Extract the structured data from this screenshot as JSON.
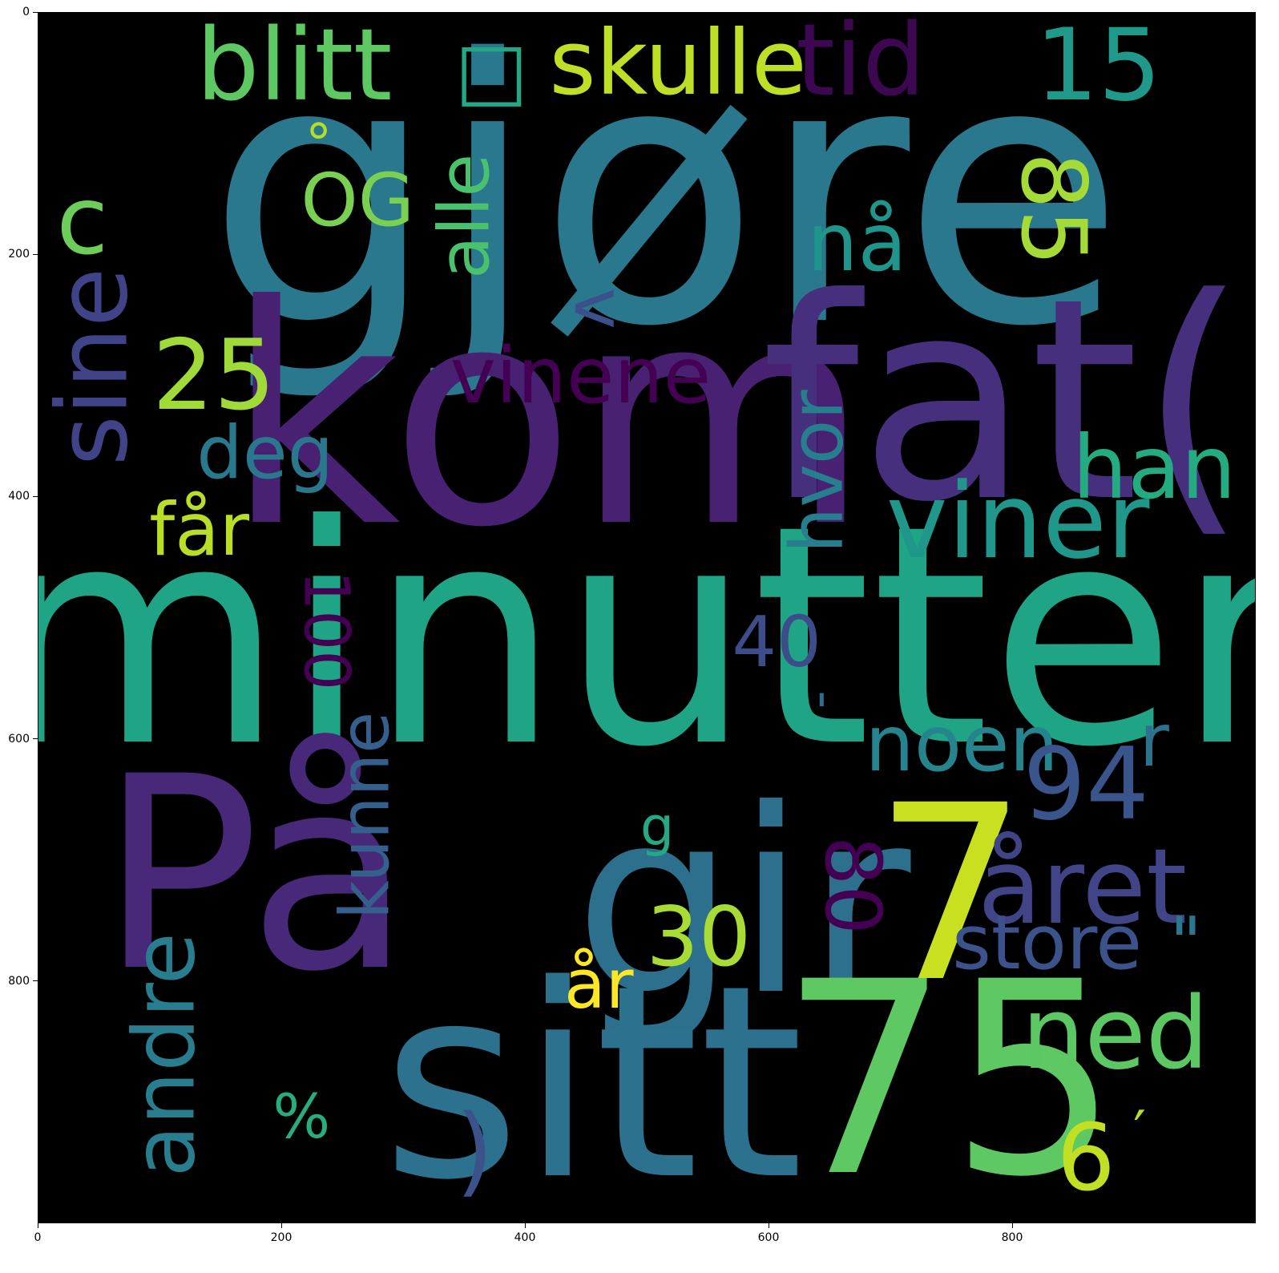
{
  "chart_data": {
    "type": "wordcloud",
    "background": "#000000",
    "xlim": [
      0,
      1000
    ],
    "ylim": [
      1000,
      0
    ],
    "x_ticks": [
      0,
      200,
      400,
      600,
      800
    ],
    "y_ticks": [
      0,
      200,
      400,
      600,
      800
    ],
    "words": [
      {
        "text": "gjøre",
        "x": 515,
        "y": 150,
        "size": 300,
        "rotate": 0,
        "color": "#2a788e"
      },
      {
        "text": "minutter",
        "x": 498,
        "y": 516,
        "size": 250,
        "rotate": 0,
        "color": "#20a486"
      },
      {
        "text": "kom",
        "x": 418,
        "y": 335,
        "size": 250,
        "rotate": 0,
        "color": "#482173"
      },
      {
        "text": "fat(",
        "x": 793,
        "y": 320,
        "size": 230,
        "rotate": 0,
        "color": "#46307e"
      },
      {
        "text": "På",
        "x": 178,
        "y": 712,
        "size": 220,
        "rotate": 0,
        "color": "#482878"
      },
      {
        "text": "gir",
        "x": 578,
        "y": 735,
        "size": 210,
        "rotate": 0,
        "color": "#2d708e"
      },
      {
        "text": "sitt",
        "x": 455,
        "y": 884,
        "size": 220,
        "rotate": 0,
        "color": "#2c728e"
      },
      {
        "text": "75",
        "x": 748,
        "y": 882,
        "size": 220,
        "rotate": 0,
        "color": "#5ec962"
      },
      {
        "text": "7",
        "x": 749,
        "y": 728,
        "size": 200,
        "rotate": 0,
        "color": "#c8e020"
      },
      {
        "text": "blitt",
        "x": 210,
        "y": 44,
        "size": 82,
        "rotate": 0,
        "color": "#5ec962"
      },
      {
        "text": "skulle",
        "x": 525,
        "y": 42,
        "size": 74,
        "rotate": 0,
        "color": "#bddf26"
      },
      {
        "text": "tid",
        "x": 675,
        "y": 40,
        "size": 82,
        "rotate": 0,
        "color": "#3e0751"
      },
      {
        "text": "15",
        "x": 870,
        "y": 44,
        "size": 82,
        "rotate": 0,
        "color": "#1f9a8a"
      },
      {
        "text": "□",
        "x": 372,
        "y": 48,
        "size": 64,
        "rotate": 0,
        "color": "#22a884"
      },
      {
        "text": "85",
        "x": 832,
        "y": 162,
        "size": 74,
        "rotate": 90,
        "color": "#a5db36"
      },
      {
        "text": "°",
        "x": 230,
        "y": 108,
        "size": 44,
        "rotate": 0,
        "color": "#b5de2b"
      },
      {
        "text": "OG",
        "x": 262,
        "y": 156,
        "size": 60,
        "rotate": 0,
        "color": "#7ad151"
      },
      {
        "text": "alle",
        "x": 350,
        "y": 168,
        "size": 58,
        "rotate": -90,
        "color": "#4ac16d"
      },
      {
        "text": "c",
        "x": 36,
        "y": 172,
        "size": 78,
        "rotate": 0,
        "color": "#6ccd5a"
      },
      {
        "text": "nå",
        "x": 672,
        "y": 190,
        "size": 66,
        "rotate": 0,
        "color": "#1f958b"
      },
      {
        "text": "v",
        "x": 460,
        "y": 244,
        "size": 58,
        "rotate": 90,
        "color": "#3b518b"
      },
      {
        "text": "sine",
        "x": 45,
        "y": 292,
        "size": 80,
        "rotate": -90,
        "color": "#404387"
      },
      {
        "text": "25",
        "x": 144,
        "y": 300,
        "size": 80,
        "rotate": 0,
        "color": "#a0da39"
      },
      {
        "text": "vinene",
        "x": 445,
        "y": 300,
        "size": 64,
        "rotate": 0,
        "color": "#440154"
      },
      {
        "text": "hvor",
        "x": 640,
        "y": 379,
        "size": 60,
        "rotate": -90,
        "color": "#277f8e"
      },
      {
        "text": "han",
        "x": 916,
        "y": 376,
        "size": 72,
        "rotate": 0,
        "color": "#25ab82"
      },
      {
        "text": "deg",
        "x": 186,
        "y": 364,
        "size": 60,
        "rotate": 0,
        "color": "#2a788e"
      },
      {
        "text": "viner",
        "x": 804,
        "y": 420,
        "size": 86,
        "rotate": 0,
        "color": "#1f988b"
      },
      {
        "text": "får",
        "x": 132,
        "y": 428,
        "size": 60,
        "rotate": 0,
        "color": "#bade28"
      },
      {
        "text": "100",
        "x": 236,
        "y": 510,
        "size": 52,
        "rotate": 90,
        "color": "#440154"
      },
      {
        "text": "40",
        "x": 606,
        "y": 520,
        "size": 58,
        "rotate": 0,
        "color": "#3d4d8a"
      },
      {
        "text": "'",
        "x": 643,
        "y": 578,
        "size": 40,
        "rotate": 0,
        "color": "#2d708e"
      },
      {
        "text": "noen",
        "x": 758,
        "y": 604,
        "size": 64,
        "rotate": 0,
        "color": "#25848e"
      },
      {
        "text": "94",
        "x": 860,
        "y": 638,
        "size": 82,
        "rotate": 0,
        "color": "#39558c"
      },
      {
        "text": "r",
        "x": 916,
        "y": 602,
        "size": 60,
        "rotate": 0,
        "color": "#2d718e"
      },
      {
        "text": "kunne",
        "x": 268,
        "y": 663,
        "size": 56,
        "rotate": -90,
        "color": "#355f8d"
      },
      {
        "text": "g",
        "x": 508,
        "y": 672,
        "size": 44,
        "rotate": 0,
        "color": "#23a983"
      },
      {
        "text": "80",
        "x": 668,
        "y": 720,
        "size": 64,
        "rotate": 90,
        "color": "#440154"
      },
      {
        "text": "året",
        "x": 857,
        "y": 722,
        "size": 86,
        "rotate": 0,
        "color": "#414487"
      },
      {
        "text": "30",
        "x": 542,
        "y": 764,
        "size": 68,
        "rotate": 0,
        "color": "#a8db34"
      },
      {
        "text": "store",
        "x": 828,
        "y": 768,
        "size": 62,
        "rotate": 0,
        "color": "#3b528b"
      },
      {
        "text": "\"",
        "x": 942,
        "y": 768,
        "size": 58,
        "rotate": 0,
        "color": "#2a778e"
      },
      {
        "text": "år",
        "x": 460,
        "y": 802,
        "size": 56,
        "rotate": 0,
        "color": "#fde725"
      },
      {
        "text": "ned",
        "x": 884,
        "y": 844,
        "size": 82,
        "rotate": 0,
        "color": "#5cc863"
      },
      {
        "text": "andre",
        "x": 104,
        "y": 860,
        "size": 70,
        "rotate": -90,
        "color": "#287d8e"
      },
      {
        "text": "%",
        "x": 216,
        "y": 912,
        "size": 50,
        "rotate": 0,
        "color": "#27ad81"
      },
      {
        "text": "6",
        "x": 860,
        "y": 946,
        "size": 76,
        "rotate": 0,
        "color": "#c2df23"
      },
      {
        "text": "′",
        "x": 904,
        "y": 924,
        "size": 46,
        "rotate": 0,
        "color": "#b5de2b"
      },
      {
        "text": ")",
        "x": 358,
        "y": 940,
        "size": 80,
        "rotate": 0,
        "color": "#3b528b"
      }
    ]
  }
}
